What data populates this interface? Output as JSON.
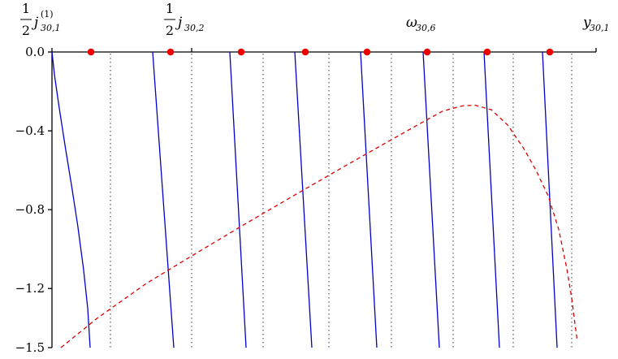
{
  "chart_data": {
    "type": "line",
    "title": "",
    "xlabel": "",
    "ylabel": "",
    "ylim": [
      -1.5,
      0.0
    ],
    "yticks": [
      {
        "value": 0.0,
        "label": "0.0"
      },
      {
        "value": -0.4,
        "label": "−0.4"
      },
      {
        "value": -0.8,
        "label": "−0.8"
      },
      {
        "value": -1.2,
        "label": "−1.2"
      },
      {
        "value": -1.5,
        "label": "−1.5"
      }
    ],
    "grid": false,
    "legend": "none",
    "top_axis_labels": [
      {
        "frac": "1",
        "over": "2",
        "sym": "j",
        "sub": "30,1",
        "sup": "(1)"
      },
      {
        "frac": "1",
        "over": "2",
        "sym": "j",
        "sub": "30,2",
        "sup": ""
      },
      {
        "frac": "",
        "over": "",
        "sym": "ω",
        "sub": "30,6",
        "sup": ""
      },
      {
        "frac": "",
        "over": "",
        "sym": "y",
        "sub": "30,1",
        "sup": ""
      }
    ],
    "colors": {
      "branches": "#0000cc",
      "envelope": "#dd0000",
      "markers": "#ee0000",
      "grid_lines": "#555555"
    },
    "series": [
      {
        "style": "solid-blue",
        "x": [
          64.0,
          67.2,
          72.8,
          80.3,
          88.2,
          95.7,
          102.8,
          108.0,
          111.0
        ],
        "y": [
          0.0,
          -0.12,
          -0.28,
          -0.48,
          -0.68,
          -0.88,
          -1.1,
          -1.3,
          -1.5
        ]
      },
      {
        "style": "solid-blue",
        "x": [
          188,
          214
        ],
        "y": [
          0.0,
          -1.5
        ]
      },
      {
        "style": "solid-blue",
        "x": [
          283,
          303
        ],
        "y": [
          0.0,
          -1.5
        ]
      },
      {
        "style": "solid-blue",
        "x": [
          363,
          384
        ],
        "y": [
          0.0,
          -1.5
        ]
      },
      {
        "style": "solid-blue",
        "x": [
          444,
          464
        ],
        "y": [
          0.0,
          -1.5
        ]
      },
      {
        "style": "solid-blue",
        "x": [
          521,
          541
        ],
        "y": [
          0.0,
          -1.5
        ]
      },
      {
        "style": "solid-blue",
        "x": [
          596,
          615
        ],
        "y": [
          0.0,
          -1.5
        ]
      },
      {
        "style": "solid-blue",
        "x": [
          668,
          686
        ],
        "y": [
          0.0,
          -1.5
        ]
      },
      {
        "style": "dashed-red",
        "x": [
          75,
          120,
          180,
          240,
          300,
          360,
          420,
          470,
          510,
          545,
          570,
          585,
          605,
          625,
          645,
          660,
          675,
          688,
          698,
          704,
          708,
          711
        ],
        "y": [
          -1.5,
          -1.35,
          -1.175,
          -1.025,
          -0.877,
          -0.733,
          -0.59,
          -0.473,
          -0.38,
          -0.3,
          -0.273,
          -0.27,
          -0.293,
          -0.37,
          -0.49,
          -0.6,
          -0.73,
          -0.9,
          -1.1,
          -1.25,
          -1.38,
          -1.47
        ]
      }
    ],
    "markers": [
      {
        "x": 112,
        "y": 0.0
      },
      {
        "x": 210,
        "y": 0.0
      },
      {
        "x": 297,
        "y": 0.0
      },
      {
        "x": 376,
        "y": 0.0
      },
      {
        "x": 452,
        "y": 0.0
      },
      {
        "x": 526,
        "y": 0.0
      },
      {
        "x": 600,
        "y": 0.0
      },
      {
        "x": 677,
        "y": 0.0
      }
    ],
    "vertical_dotted": [
      136,
      236,
      324,
      405,
      482,
      558,
      632,
      704
    ]
  }
}
